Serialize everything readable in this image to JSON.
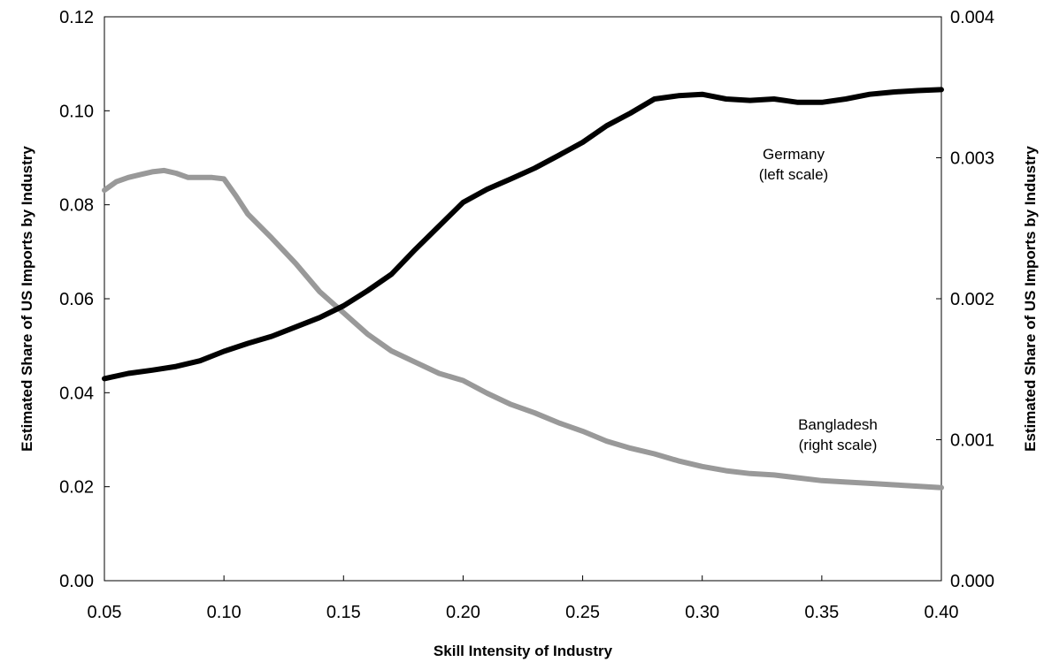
{
  "chart_data": {
    "type": "line",
    "title": "",
    "xlabel": "Skill Intensity of Industry",
    "ylabel_left": "Estimated Share of US Imports by Industry",
    "ylabel_right": "Estimated Share of US Imports by Industry",
    "xlim": [
      0.05,
      0.4
    ],
    "ylim_left": [
      0,
      0.12
    ],
    "ylim_right": [
      0,
      0.004
    ],
    "x_ticks": [
      "0.05",
      "0.10",
      "0.15",
      "0.20",
      "0.25",
      "0.30",
      "0.35",
      "0.40"
    ],
    "y_ticks_left": [
      "0.00",
      "0.02",
      "0.04",
      "0.06",
      "0.08",
      "0.10",
      "0.12"
    ],
    "y_ticks_right": [
      "0.000",
      "0.001",
      "0.002",
      "0.003",
      "0.004"
    ],
    "grid": false,
    "legend": "none",
    "annotations": [
      {
        "series": "germany",
        "lines": [
          "Germany",
          "(left scale)"
        ]
      },
      {
        "series": "bangladesh",
        "lines": [
          "Bangladesh",
          "(right scale)"
        ]
      }
    ],
    "series": [
      {
        "id": "germany",
        "axis": "left",
        "color": "#000000",
        "x": [
          0.05,
          0.06,
          0.07,
          0.08,
          0.09,
          0.1,
          0.11,
          0.12,
          0.13,
          0.14,
          0.15,
          0.16,
          0.17,
          0.18,
          0.19,
          0.2,
          0.21,
          0.22,
          0.23,
          0.24,
          0.25,
          0.26,
          0.27,
          0.28,
          0.29,
          0.3,
          0.31,
          0.32,
          0.33,
          0.34,
          0.35,
          0.36,
          0.37,
          0.38,
          0.39,
          0.4
        ],
        "y": [
          0.043,
          0.0441,
          0.0448,
          0.0456,
          0.0468,
          0.0488,
          0.0505,
          0.052,
          0.054,
          0.056,
          0.0585,
          0.0617,
          0.0652,
          0.0705,
          0.0755,
          0.0805,
          0.0833,
          0.0855,
          0.0878,
          0.0905,
          0.0933,
          0.0968,
          0.0995,
          0.1025,
          0.1032,
          0.1035,
          0.1025,
          0.1022,
          0.1025,
          0.1018,
          0.1018,
          0.1025,
          0.1035,
          0.104,
          0.1043,
          0.1045
        ]
      },
      {
        "id": "bangladesh",
        "axis": "right",
        "color": "#999999",
        "x": [
          0.05,
          0.055,
          0.06,
          0.065,
          0.07,
          0.075,
          0.08,
          0.085,
          0.09,
          0.095,
          0.1,
          0.105,
          0.11,
          0.12,
          0.13,
          0.14,
          0.15,
          0.16,
          0.17,
          0.18,
          0.19,
          0.2,
          0.21,
          0.22,
          0.23,
          0.24,
          0.25,
          0.26,
          0.27,
          0.28,
          0.29,
          0.3,
          0.31,
          0.32,
          0.33,
          0.34,
          0.35,
          0.36,
          0.37,
          0.38,
          0.39,
          0.4
        ],
        "y": [
          0.00277,
          0.00283,
          0.00286,
          0.00288,
          0.0029,
          0.00291,
          0.00289,
          0.00286,
          0.00286,
          0.00286,
          0.00285,
          0.00273,
          0.0026,
          0.00243,
          0.00225,
          0.00205,
          0.0019,
          0.00175,
          0.00163,
          0.00155,
          0.00147,
          0.00142,
          0.00133,
          0.00125,
          0.00119,
          0.00112,
          0.00106,
          0.00099,
          0.00094,
          0.0009,
          0.00085,
          0.00081,
          0.00078,
          0.00076,
          0.00075,
          0.00073,
          0.00071,
          0.0007,
          0.00069,
          0.00068,
          0.00067,
          0.00066
        ]
      }
    ]
  }
}
